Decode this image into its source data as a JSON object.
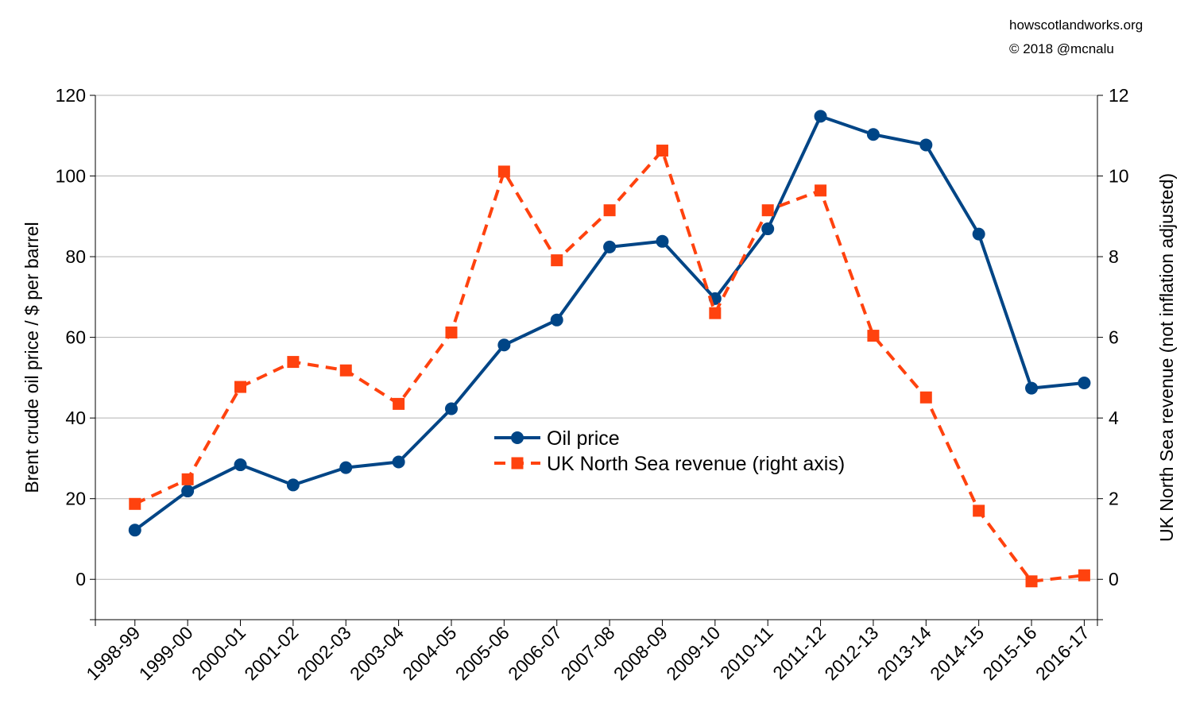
{
  "credits": {
    "site": "howscotlandworks.org",
    "copyright": "© 2018  @mcnalu"
  },
  "chart_data": {
    "type": "line",
    "title": "",
    "xlabel": "",
    "ylabel": "Brent crude oil price / $ per barrel",
    "y2label": "UK North Sea revenue (not inflation adjusted)",
    "ylim": [
      -10,
      120
    ],
    "y2lim": [
      -1,
      12
    ],
    "yticks": [
      0,
      20,
      40,
      60,
      80,
      100,
      120
    ],
    "y2ticks": [
      0,
      2,
      4,
      6,
      8,
      10,
      12
    ],
    "grid": true,
    "legend_position": "center",
    "categories": [
      "1998-99",
      "1999-00",
      "2000-01",
      "2001-02",
      "2002-03",
      "2003-04",
      "2004-05",
      "2005-06",
      "2006-07",
      "2007-08",
      "2008-09",
      "2009-10",
      "2010-11",
      "2011-12",
      "2012-13",
      "2013-14",
      "2014-15",
      "2015-16",
      "2016-17"
    ],
    "series": [
      {
        "name": "Oil price",
        "axis": "left",
        "color": "#004586",
        "marker": "circle",
        "line": "solid",
        "values": [
          12.2,
          21.9,
          28.4,
          23.4,
          27.7,
          29.1,
          42.3,
          58.1,
          64.3,
          82.4,
          83.8,
          69.6,
          86.9,
          114.8,
          110.3,
          107.7,
          85.6,
          47.4,
          48.7
        ]
      },
      {
        "name": "UK North Sea revenue (right axis)",
        "axis": "right",
        "color": "#ff420e",
        "marker": "square",
        "line": "dashed",
        "values": [
          1.87,
          2.48,
          4.77,
          5.39,
          5.18,
          4.35,
          6.12,
          10.11,
          7.91,
          9.15,
          10.63,
          6.6,
          9.15,
          9.64,
          6.04,
          4.51,
          1.7,
          -0.05,
          0.1
        ]
      }
    ]
  }
}
